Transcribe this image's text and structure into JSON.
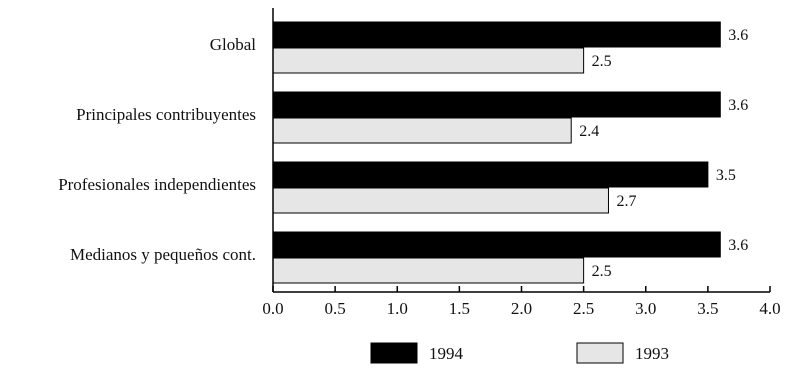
{
  "chart_data": {
    "type": "bar",
    "orientation": "horizontal",
    "categories": [
      "Global",
      "Principales contribuyentes",
      "Profesionales independientes",
      "Medianos y pequeños cont."
    ],
    "series": [
      {
        "name": "1994",
        "values": [
          3.6,
          3.6,
          3.5,
          3.6
        ],
        "color": "#000000"
      },
      {
        "name": "1993",
        "values": [
          2.5,
          2.4,
          2.7,
          2.5
        ],
        "color": "#e6e6e6"
      }
    ],
    "xlim": [
      0,
      4.0
    ],
    "xticks": [
      "0.0",
      "0.5",
      "1.0",
      "1.5",
      "2.0",
      "2.5",
      "3.0",
      "3.5",
      "4.0"
    ],
    "legend_position": "bottom",
    "grid": false
  }
}
